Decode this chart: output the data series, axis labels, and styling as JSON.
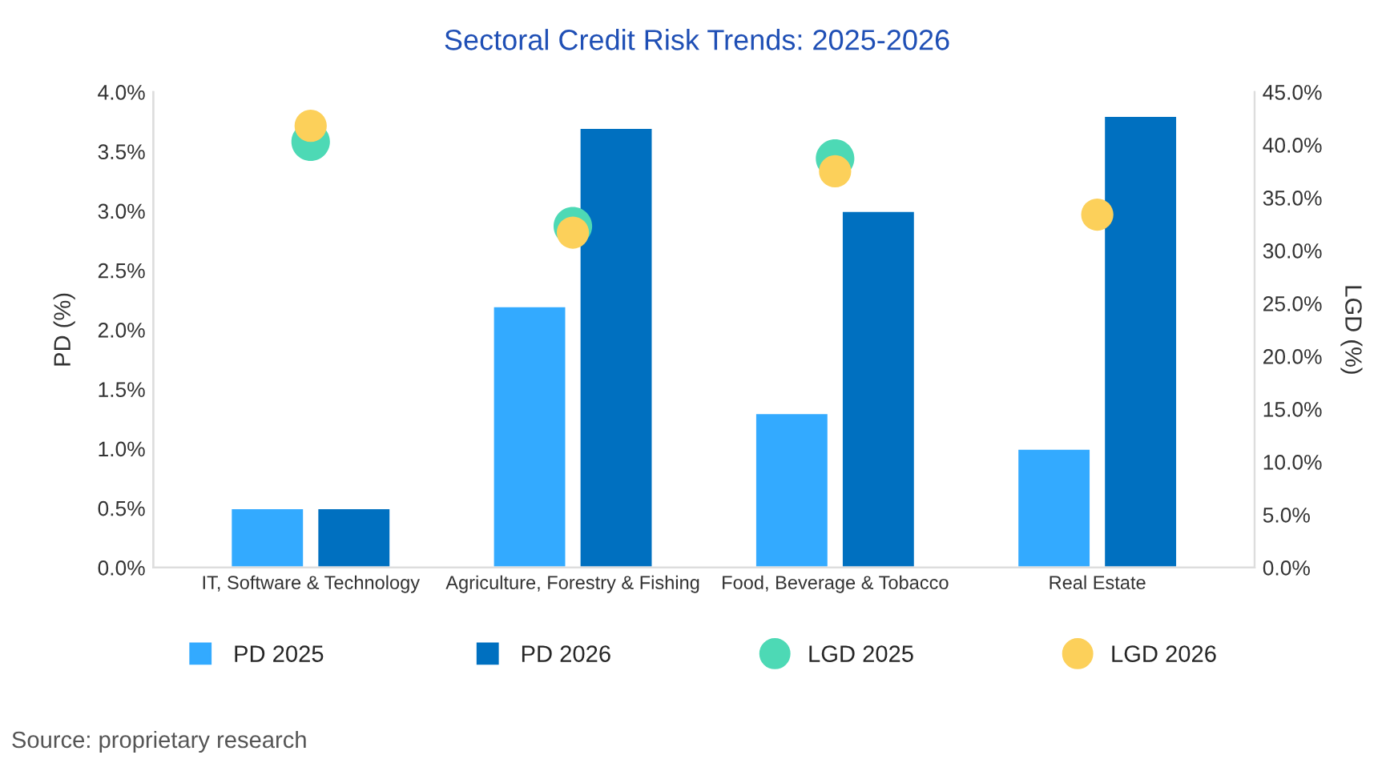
{
  "chart_data": {
    "type": "bar",
    "title": "Sectoral Credit Risk Trends: 2025-2026",
    "ylabel": "PD (%)",
    "y2label": "LGD (%)",
    "categories": [
      "IT, Software & Technology",
      "Agriculture, Forestry & Fishing",
      "Food, Beverage & Tobacco",
      "Real Estate"
    ],
    "series": [
      {
        "name": "PD 2025",
        "color": "#33aaff",
        "values": [
          0.5,
          2.2,
          1.3,
          1.0
        ]
      },
      {
        "name": "PD 2026",
        "color": "#0070c0",
        "values": [
          0.5,
          3.7,
          3.0,
          3.8
        ]
      },
      {
        "name": "LGD 2025",
        "type": "scatter",
        "axis": "y2",
        "color": "#4dd9b5",
        "values": [
          40.3,
          32.3,
          38.7,
          null
        ]
      },
      {
        "name": "LGD 2026",
        "type": "scatter",
        "axis": "y2",
        "color": "#fcd05a",
        "values": [
          41.8,
          31.7,
          37.5,
          33.4
        ]
      }
    ],
    "ylim": [
      0,
      4.0
    ],
    "yticks": [
      {
        "value": 0,
        "label": "0.0%"
      },
      {
        "value": 0.5,
        "label": "0.5%"
      },
      {
        "value": 1.0,
        "label": "1.0%"
      },
      {
        "value": 1.5,
        "label": "1.5%"
      },
      {
        "value": 2.0,
        "label": "2.0%"
      },
      {
        "value": 2.5,
        "label": "2.5%"
      },
      {
        "value": 3.0,
        "label": "3.0%"
      },
      {
        "value": 3.5,
        "label": "3.5%"
      },
      {
        "value": 4.0,
        "label": "4.0%"
      }
    ],
    "y2lim": [
      0,
      45
    ],
    "y2ticks": [
      {
        "value": 0,
        "label": "0.0%"
      },
      {
        "value": 5,
        "label": "5.0%"
      },
      {
        "value": 10,
        "label": "10.0%"
      },
      {
        "value": 15,
        "label": "15.0%"
      },
      {
        "value": 20,
        "label": "20.0%"
      },
      {
        "value": 25,
        "label": "25.0%"
      },
      {
        "value": 30,
        "label": "30.0%"
      },
      {
        "value": 35,
        "label": "35.0%"
      },
      {
        "value": 40,
        "label": "40.0%"
      },
      {
        "value": 45,
        "label": "45.0%"
      }
    ],
    "grid": false,
    "legend": "bottom",
    "marker": "circle",
    "annotations": [
      "Source: proprietary research"
    ]
  }
}
